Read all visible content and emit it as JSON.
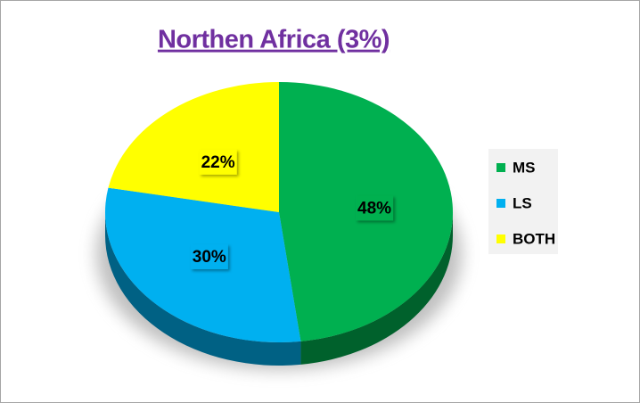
{
  "chart_data": {
    "type": "pie",
    "title": "Northen Africa (3%)",
    "categories": [
      "MS",
      "LS",
      "BOTH"
    ],
    "values": [
      48,
      30,
      22
    ],
    "value_labels": [
      "48%",
      "30%",
      "22%"
    ],
    "colors": [
      "#00b050",
      "#00b0f0",
      "#ffff00"
    ],
    "legend": "right"
  }
}
